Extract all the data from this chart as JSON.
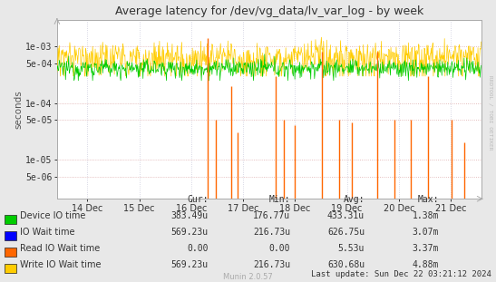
{
  "title": "Average latency for /dev/vg_data/lv_var_log - by week",
  "ylabel": "seconds",
  "watermark": "Munin 2.0.57",
  "rrdtool_label": "RRDTOOL / TOBI OETIKER",
  "x_tick_labels": [
    "14 Dec",
    "15 Dec",
    "16 Dec",
    "17 Dec",
    "18 Dec",
    "19 Dec",
    "20 Dec",
    "21 Dec"
  ],
  "y_ticks": [
    5e-06,
    1e-05,
    5e-05,
    0.0001,
    0.0005,
    0.001
  ],
  "y_tick_labels": [
    "5e-06",
    "1e-05",
    "5e-05",
    "1e-04",
    "5e-04",
    "1e-03"
  ],
  "background_color": "#e8e8e8",
  "plot_bg_color": "#ffffff",
  "grid_color_h": "#ddaaaa",
  "grid_color_v": "#ccccdd",
  "legend_items": [
    {
      "label": "Device IO time",
      "color": "#00cc00"
    },
    {
      "label": "IO Wait time",
      "color": "#0000ff"
    },
    {
      "label": "Read IO Wait time",
      "color": "#ff6600"
    },
    {
      "label": "Write IO Wait time",
      "color": "#ffcc00"
    }
  ],
  "stats_headers": [
    "Cur:",
    "Min:",
    "Avg:",
    "Max:"
  ],
  "stats": [
    [
      "383.49u",
      "176.77u",
      "433.31u",
      "1.38m"
    ],
    [
      "569.23u",
      "216.73u",
      "626.75u",
      "3.07m"
    ],
    [
      "0.00",
      "0.00",
      "5.53u",
      "3.37m"
    ],
    [
      "569.23u",
      "216.73u",
      "630.68u",
      "4.88m"
    ]
  ],
  "last_update": "Last update: Sun Dec 22 03:21:12 2024",
  "green_base": 0.00042,
  "green_noise": 8e-05,
  "yellow_base": 0.00065,
  "yellow_noise": 0.00025,
  "orange_spike_positions": [
    0.355,
    0.375,
    0.41,
    0.425,
    0.515,
    0.535,
    0.56,
    0.625,
    0.665,
    0.695,
    0.755,
    0.795,
    0.835,
    0.875,
    0.93,
    0.96
  ],
  "orange_spike_heights": [
    0.0014,
    5e-05,
    0.0002,
    3e-05,
    0.0003,
    5e-05,
    4e-05,
    0.0008,
    5e-05,
    4.5e-05,
    0.0008,
    5e-05,
    5e-05,
    0.0003,
    5e-05,
    2e-05
  ],
  "n_points": 800
}
